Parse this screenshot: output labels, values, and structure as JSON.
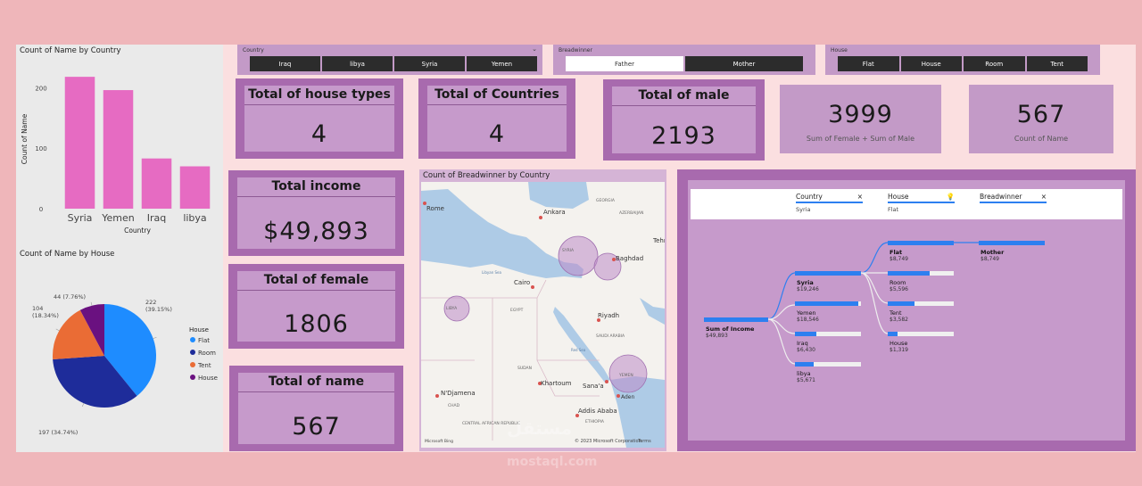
{
  "bar_chart": {
    "title": "Count of Name by Country",
    "xlabel": "Country",
    "ylabel": "Count of Name"
  },
  "pie_chart": {
    "title": "Count of Name by House",
    "legend_title": "House",
    "labels": [
      "222\n(39.15%)",
      "197 (34.74%)",
      "104\n(18.34%)",
      "44 (7.76%)"
    ]
  },
  "chart_data": [
    {
      "type": "bar",
      "title": "Count of Name by Country",
      "xlabel": "Country",
      "ylabel": "Count of Name",
      "categories": [
        "Syria",
        "Yemen",
        "Iraq",
        "libya"
      ],
      "values": [
        218,
        196,
        83,
        70
      ],
      "ylim": [
        0,
        230
      ],
      "yticks": [
        0,
        100,
        200
      ],
      "color": "#e66bc2",
      "grid": false
    },
    {
      "type": "pie",
      "title": "Count of Name by House",
      "legend_title": "House",
      "legend_position": "right",
      "labels": [
        "Flat",
        "Room",
        "Tent",
        "House"
      ],
      "values": [
        222,
        197,
        104,
        44
      ],
      "percent": [
        39.15,
        34.74,
        18.34,
        7.76
      ],
      "colors": [
        "#1e8cff",
        "#1e2c9a",
        "#ea6c35",
        "#6a1180"
      ]
    }
  ],
  "slicers": {
    "country": {
      "title": "Country",
      "options": [
        "Iraq",
        "libya",
        "Syria",
        "Yemen"
      ]
    },
    "breadwinner": {
      "title": "Breadwinner",
      "options": [
        "Father",
        "Mother"
      ],
      "selected": "Father"
    },
    "house": {
      "title": "House",
      "options": [
        "Flat",
        "House",
        "Room",
        "Tent"
      ]
    }
  },
  "kpis": {
    "house_types": {
      "label": "Total of house types",
      "value": "4"
    },
    "countries": {
      "label": "Total of Countries",
      "value": "4"
    },
    "male": {
      "label": "Total of male",
      "value": "2193"
    },
    "income": {
      "label": "Total income",
      "value": "$49,893"
    },
    "female": {
      "label": "Total of female",
      "value": "1806"
    },
    "names": {
      "label": "Total of name",
      "value": "567"
    }
  },
  "cards": {
    "sum_fm": {
      "value": "3999",
      "label": "Sum of Female + Sum of Male"
    },
    "count_name": {
      "value": "567",
      "label": "Count of Name"
    }
  },
  "map": {
    "title": "Count of Breadwinner by Country",
    "places": [
      "Rome",
      "Ankara",
      "Baghdad",
      "SYRIA",
      "Cairo",
      "EGYPT",
      "LIBYA",
      "Riyadh",
      "SAUDI ARABIA",
      "SUDAN",
      "Khartoum",
      "Sana'a",
      "YEMEN",
      "N'Djamena",
      "CHAD",
      "Addis Ababa",
      "ETHIOPIA",
      "CENTRAL AFRICAN REPUBLIC",
      "Aden",
      "Tehr",
      "GEORGIA",
      "AZERBAIJAN",
      "Libyan Sea",
      "Red Sea"
    ],
    "copyright": "© 2023 Microsoft Corporation",
    "terms": "Terms",
    "bing": "Microsoft Bing"
  },
  "tree": {
    "headers": [
      {
        "title": "Country",
        "sub": "Syria"
      },
      {
        "title": "House",
        "sub": "Flat"
      },
      {
        "title": "Breadwinner",
        "sub": ""
      }
    ],
    "root": {
      "label": "Sum of Income",
      "value": "$49,893"
    },
    "countries": [
      {
        "label": "Syria",
        "value": "$19,246",
        "frac": 1.0
      },
      {
        "label": "Yemen",
        "value": "$18,546",
        "frac": 0.96
      },
      {
        "label": "Iraq",
        "value": "$6,430",
        "frac": 0.33
      },
      {
        "label": "libya",
        "value": "$5,671",
        "frac": 0.29
      }
    ],
    "houses": [
      {
        "label": "Flat",
        "value": "$8,749",
        "frac": 1.0
      },
      {
        "label": "Room",
        "value": "$5,596",
        "frac": 0.64
      },
      {
        "label": "Tent",
        "value": "$3,582",
        "frac": 0.41
      },
      {
        "label": "House",
        "value": "$1,319",
        "frac": 0.15
      }
    ],
    "breadwinner": {
      "label": "Mother",
      "value": "$8,749"
    }
  },
  "watermark": "مستقل",
  "watermark2": "mostaql.com"
}
